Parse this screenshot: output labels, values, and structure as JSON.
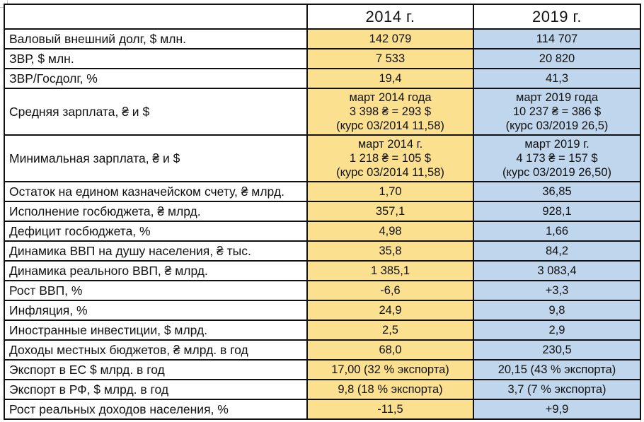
{
  "table": {
    "header": {
      "label_col": "",
      "col_2014": "2014 г.",
      "col_2019": "2019 г."
    },
    "rows": [
      {
        "label": "Валовый внешний долг, $ млн.",
        "v2014": "142 079",
        "v2019": "114 707"
      },
      {
        "label": "ЗВР, $ млн.",
        "v2014": "7 533",
        "v2019": "20 820"
      },
      {
        "label": "ЗВР/Госдолг, %",
        "v2014": "19,4",
        "v2019": "41,3"
      },
      {
        "label": "Средняя зарплата, ₴ и $",
        "v2014": "март 2014 года\n3 398 ₴ = 293 $\n(курс 03/2014 11,58)",
        "v2019": "март 2019 года\n10 237 ₴ = 386 $\n(курс 03/2019 26,5)"
      },
      {
        "label": "Минимальная зарплата, ₴ и $",
        "v2014": "март 2014 г.\n1 218 ₴ = 105 $\n(курс 03/2014 11,58)",
        "v2019": "март 2019 г.\n4 173 ₴ = 157 $\n(курс 03/2019 26,50)"
      },
      {
        "label": "Остаток на едином казначейском счету, ₴ млрд.",
        "v2014": "1,70",
        "v2019": "36,85"
      },
      {
        "label": "Исполнение госбюджета, ₴ млрд.",
        "v2014": "357,1",
        "v2019": "928,1"
      },
      {
        "label": "Дефицит госбюджета, %",
        "v2014": "4,98",
        "v2019": "1,66"
      },
      {
        "label": "Динамика ВВП на душу населения, ₴ тыс.",
        "v2014": "35,8",
        "v2019": "84,2"
      },
      {
        "label": "Динамика реального ВВП, ₴ млрд.",
        "v2014": "1 385,1",
        "v2019": "3 083,4"
      },
      {
        "label": "Рост ВВП, %",
        "v2014": "-6,6",
        "v2019": "+3,3"
      },
      {
        "label": "Инфляция, %",
        "v2014": "24,9",
        "v2019": "9,8"
      },
      {
        "label": "Иностранные инвестиции, $ млрд.",
        "v2014": "2,5",
        "v2019": "2,9"
      },
      {
        "label": "Доходы местных бюджетов,  ₴ млрд. в год",
        "v2014": "68,0",
        "v2019": "230,5"
      },
      {
        "label": "Экспорт в ЕС $ млрд. в год",
        "v2014": "17,00 (32 % экспорта)",
        "v2019": "20,15 (43 % экспорта)"
      },
      {
        "label": "Экспорт в РФ, $ млрд. в год",
        "v2014": "9,8 (18 % экспорта)",
        "v2019": "3,7 (7 % экспорта)"
      },
      {
        "label": "Рост реальных доходов населения, %",
        "v2014": "-11,5",
        "v2019": "+9,9"
      }
    ]
  },
  "colors": {
    "col_2014_bg": "#FAE08F",
    "col_2019_bg": "#BFD6EC",
    "border": "#111111",
    "page_bg": "#FFFFFF"
  },
  "chart_data": {
    "type": "table",
    "title": "",
    "columns": [
      "",
      "2014 г.",
      "2019 г."
    ],
    "rows": [
      [
        "Валовый внешний долг, $ млн.",
        "142 079",
        "114 707"
      ],
      [
        "ЗВР, $ млн.",
        "7 533",
        "20 820"
      ],
      [
        "ЗВР/Госдолг, %",
        "19,4",
        "41,3"
      ],
      [
        "Средняя зарплата, ₴ и $",
        "март 2014 года\n3 398 ₴ = 293 $\n(курс 03/2014 11,58)",
        "март 2019 года\n10 237 ₴ = 386 $\n(курс 03/2019 26,5)"
      ],
      [
        "Минимальная зарплата, ₴ и $",
        "март 2014 г.\n1 218 ₴ = 105 $\n(курс 03/2014 11,58)",
        "март 2019 г.\n4 173 ₴ = 157 $\n(курс 03/2019 26,50)"
      ],
      [
        "Остаток на едином казначейском счету, ₴ млрд.",
        "1,70",
        "36,85"
      ],
      [
        "Исполнение госбюджета, ₴ млрд.",
        "357,1",
        "928,1"
      ],
      [
        "Дефицит госбюджета, %",
        "4,98",
        "1,66"
      ],
      [
        "Динамика ВВП на душу населения, ₴ тыс.",
        "35,8",
        "84,2"
      ],
      [
        "Динамика реального ВВП, ₴ млрд.",
        "1 385,1",
        "3 083,4"
      ],
      [
        "Рост ВВП, %",
        "-6,6",
        "+3,3"
      ],
      [
        "Инфляция, %",
        "24,9",
        "9,8"
      ],
      [
        "Иностранные инвестиции, $ млрд.",
        "2,5",
        "2,9"
      ],
      [
        "Доходы местных бюджетов,  ₴ млрд. в год",
        "68,0",
        "230,5"
      ],
      [
        "Экспорт в ЕС $ млрд. в год",
        "17,00 (32 % экспорта)",
        "20,15 (43 % экспорта)"
      ],
      [
        "Экспорт в РФ, $ млрд. в год",
        "9,8 (18 % экспорта)",
        "3,7 (7 % экспорта)"
      ],
      [
        "Рост реальных доходов населения, %",
        "-11,5",
        "+9,9"
      ]
    ]
  }
}
